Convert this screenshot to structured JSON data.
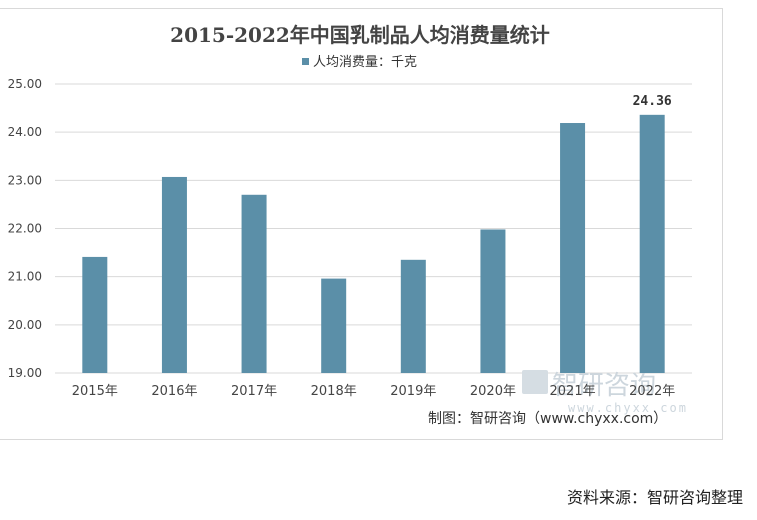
{
  "chart_data": {
    "type": "bar",
    "title": "2015-2022年中国乳制品人均消费量统计",
    "legend": {
      "label": "人均消费量：千克",
      "placement": "top-center"
    },
    "categories": [
      "2015年",
      "2016年",
      "2017年",
      "2018年",
      "2019年",
      "2020年",
      "2021年",
      "2022年"
    ],
    "series": [
      {
        "name": "人均消费量：千克",
        "values": [
          21.41,
          23.07,
          22.7,
          20.96,
          21.35,
          21.98,
          24.19,
          24.36
        ]
      }
    ],
    "data_labels": [
      {
        "index": 7,
        "text": "24.36"
      }
    ],
    "ylim": [
      19,
      25
    ],
    "yticks": [
      "19.00",
      "20.00",
      "21.00",
      "22.00",
      "23.00",
      "24.00",
      "25.00"
    ],
    "grid": true,
    "colors": {
      "bar": "#5b8fa8",
      "grid": "#d9d9d9",
      "watermark": "#c9d3da"
    }
  },
  "watermark": {
    "cn": "智研咨询",
    "url": "www.chyxx.com"
  },
  "credit": "制图：智研咨询（www.chyxx.com）",
  "source": "资料来源：智研咨询整理"
}
